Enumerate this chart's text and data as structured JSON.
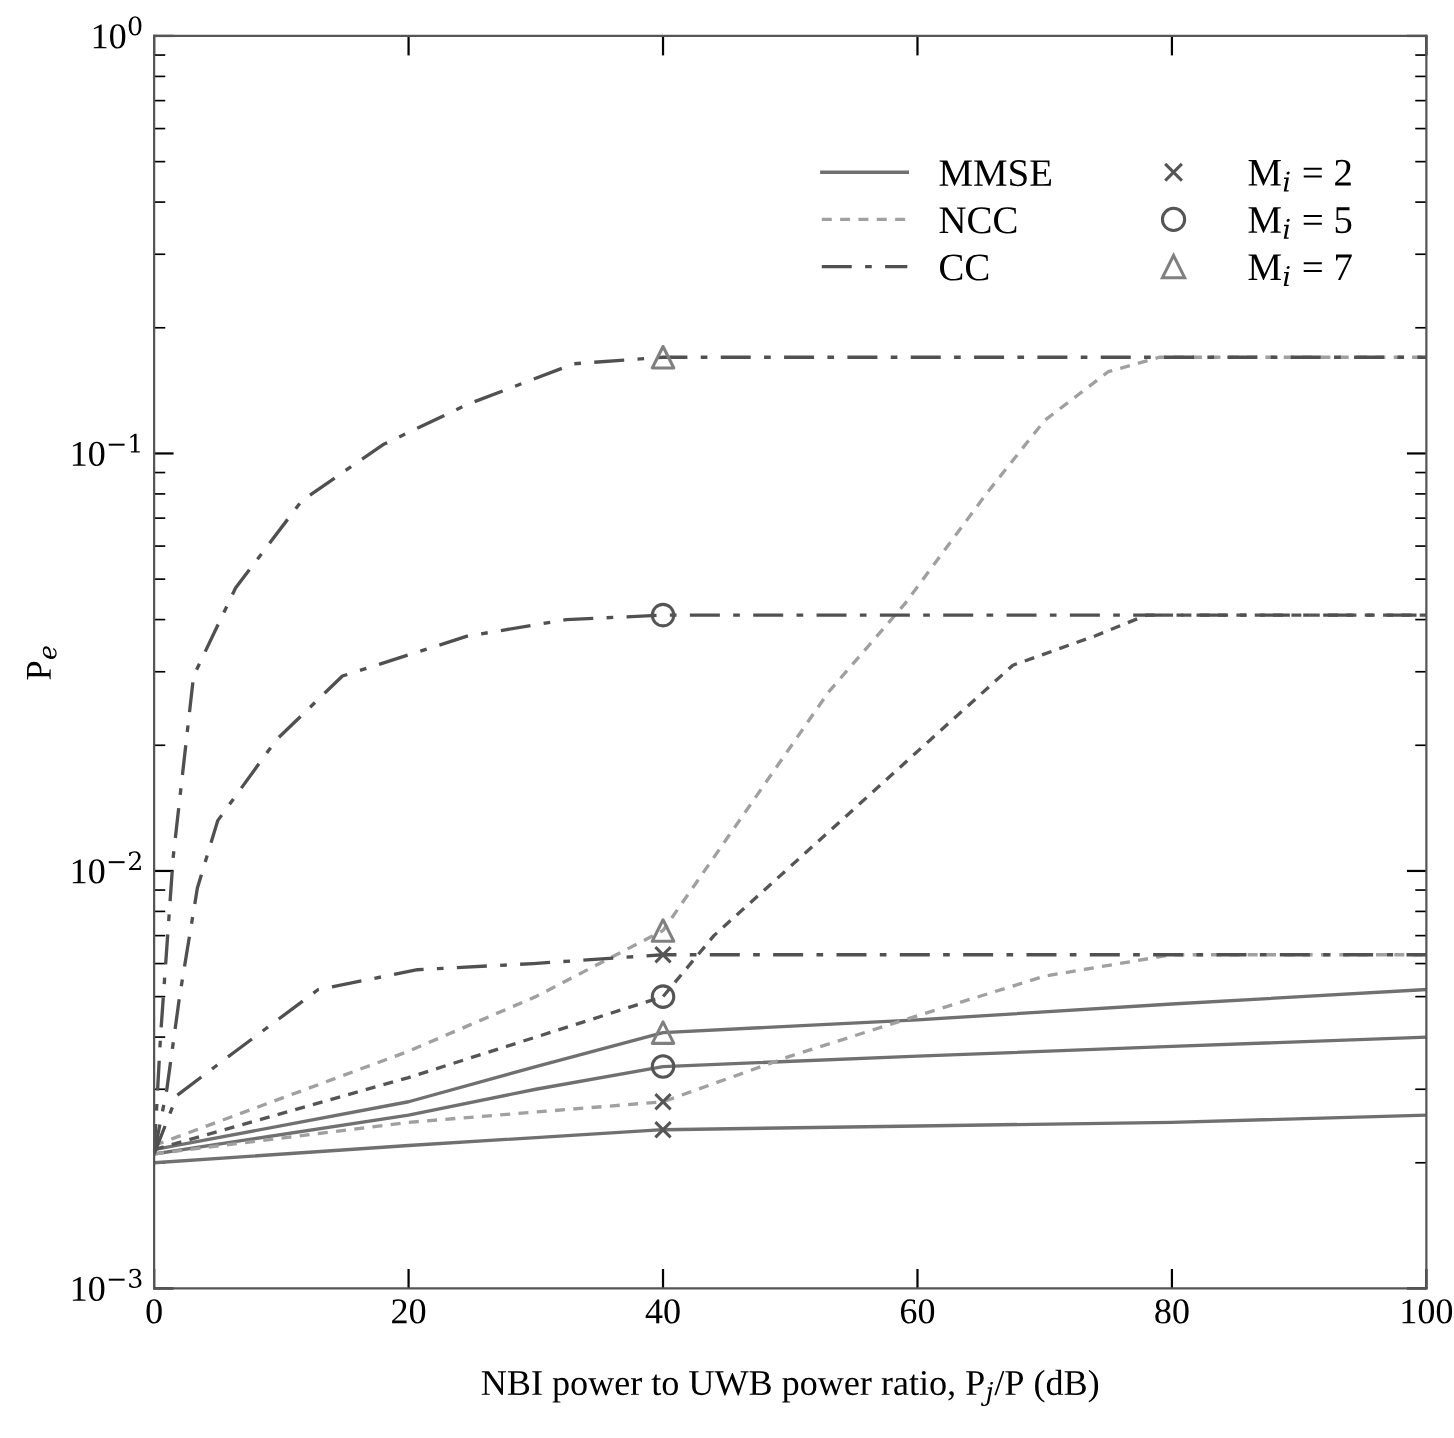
{
  "chart_data": {
    "type": "line",
    "xlabel": "NBI power to UWB power ratio, P$_{j}$/P (dB)",
    "ylabel": "P$_{e}$",
    "log": "y",
    "xlim": [
      0,
      100
    ],
    "xticks": [
      0,
      20,
      40,
      60,
      80,
      100
    ],
    "ylim": [
      0.001,
      1
    ],
    "yticks": [
      {
        "value": 0.001,
        "label": "10$^{−3}$"
      },
      {
        "value": 0.01,
        "label": "10$^{−2}$"
      },
      {
        "value": 0.1,
        "label": "10$^{−1}$"
      },
      {
        "value": 1,
        "label": "10$^{0}$"
      }
    ],
    "grid": false,
    "legend": "top right",
    "series": [
      {
        "name": "MMSE",
        "line_style": "solid",
        "color": "#707070",
        "x": [
          0,
          20,
          40,
          60,
          80,
          100
        ],
        "values": [
          0.002,
          0.0022,
          0.0024,
          0.00245,
          0.0025,
          0.0026
        ]
      },
      {
        "line_style": "solid",
        "color": "#707070",
        "x": [
          0,
          20,
          30,
          40,
          60,
          80,
          100
        ],
        "values": [
          0.0021,
          0.0026,
          0.003,
          0.0034,
          0.0036,
          0.0038,
          0.004
        ]
      },
      {
        "line_style": "solid",
        "color": "#707070",
        "x": [
          0,
          20,
          30,
          40,
          60,
          80,
          100
        ],
        "values": [
          0.00215,
          0.0028,
          0.0034,
          0.0041,
          0.0044,
          0.0048,
          0.0052
        ]
      },
      {
        "name": "NCC",
        "line_style": "dotted",
        "color": "#a0a0a0",
        "x": [
          0,
          20,
          40,
          50,
          60,
          70,
          80,
          100
        ],
        "values": [
          0.0021,
          0.0025,
          0.0028,
          0.0036,
          0.0045,
          0.0056,
          0.0063,
          0.0063
        ]
      },
      {
        "line_style": "dotted",
        "color": "#555555",
        "x": [
          0,
          20,
          30,
          40,
          44,
          54,
          61,
          67.5,
          74,
          78,
          100
        ],
        "values": [
          0.00215,
          0.0032,
          0.004,
          0.005,
          0.007,
          0.0132,
          0.0206,
          0.0311,
          0.0366,
          0.041,
          0.041
        ]
      },
      {
        "line_style": "dotted",
        "color": "#a0a0a0",
        "x": [
          0,
          20,
          30,
          40,
          46,
          53,
          59,
          65.5,
          70,
          75,
          79,
          100
        ],
        "values": [
          0.0022,
          0.0037,
          0.005,
          0.0072,
          0.0132,
          0.0268,
          0.0436,
          0.0807,
          0.12,
          0.157,
          0.17,
          0.17
        ]
      },
      {
        "name": "CC",
        "line_style": "dashed",
        "color": "#505050",
        "x": [
          0,
          1.8,
          6.4,
          12.9,
          20.7,
          29.8,
          40,
          100
        ],
        "values": [
          0.0021,
          0.0029,
          0.0037,
          0.0052,
          0.0058,
          0.006,
          0.0063,
          0.0063
        ]
      },
      {
        "line_style": "dashed",
        "color": "#505050",
        "x": [
          0,
          1,
          2,
          3.4,
          5,
          9.6,
          14.8,
          24.6,
          32.4,
          40,
          100
        ],
        "values": [
          0.0021,
          0.003,
          0.005,
          0.0091,
          0.0132,
          0.0206,
          0.0293,
          0.0365,
          0.04,
          0.041,
          0.041
        ]
      },
      {
        "line_style": "dashed",
        "color": "#505050",
        "x": [
          0,
          0.5,
          1.5,
          3.1,
          6.4,
          11.6,
          18,
          24.6,
          33,
          40,
          100
        ],
        "values": [
          0.0021,
          0.004,
          0.0108,
          0.0293,
          0.0476,
          0.077,
          0.105,
          0.131,
          0.164,
          0.17,
          0.17
        ]
      },
      {
        "name": "M$_{i}$ = 2",
        "type": "scatter",
        "marker": "cross",
        "color": "#555555",
        "x": [
          40,
          40,
          40
        ],
        "values": [
          0.0024,
          0.0028,
          0.0063
        ]
      },
      {
        "name": "M$_{i}$ = 5",
        "type": "scatter",
        "marker": "circle",
        "color": "#555555",
        "x": [
          40,
          40,
          40
        ],
        "values": [
          0.0034,
          0.005,
          0.041
        ]
      },
      {
        "name": "M$_{i}$ = 7",
        "type": "scatter",
        "marker": "triangle",
        "color": "#808080",
        "x": [
          40,
          40,
          40
        ],
        "values": [
          0.0041,
          0.0072,
          0.17
        ]
      }
    ]
  }
}
